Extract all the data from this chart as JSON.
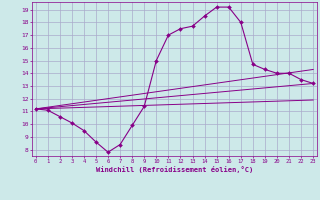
{
  "xlabel": "Windchill (Refroidissement éolien,°C)",
  "background_color": "#cde9e9",
  "grid_color": "#aaaacc",
  "line_color": "#880088",
  "main_x": [
    0,
    1,
    2,
    3,
    4,
    5,
    6,
    7,
    8,
    9,
    10,
    11,
    12,
    13,
    14,
    15,
    16,
    17,
    18,
    19,
    20,
    21,
    22,
    23
  ],
  "main_y": [
    11.2,
    11.1,
    10.6,
    10.1,
    9.5,
    8.6,
    7.8,
    8.4,
    9.9,
    11.4,
    15.0,
    17.0,
    17.5,
    17.7,
    18.5,
    19.2,
    19.2,
    18.0,
    14.7,
    14.3,
    14.0,
    14.0,
    13.5,
    13.2
  ],
  "line1_x": [
    0,
    23
  ],
  "line1_y": [
    11.2,
    13.2
  ],
  "line2_x": [
    0,
    23
  ],
  "line2_y": [
    11.2,
    11.9
  ],
  "line3_x": [
    0,
    23
  ],
  "line3_y": [
    11.2,
    14.3
  ],
  "xlim": [
    -0.3,
    23.3
  ],
  "ylim": [
    7.5,
    19.6
  ],
  "yticks": [
    8,
    9,
    10,
    11,
    12,
    13,
    14,
    15,
    16,
    17,
    18,
    19
  ],
  "xticks": [
    0,
    1,
    2,
    3,
    4,
    5,
    6,
    7,
    8,
    9,
    10,
    11,
    12,
    13,
    14,
    15,
    16,
    17,
    18,
    19,
    20,
    21,
    22,
    23
  ]
}
